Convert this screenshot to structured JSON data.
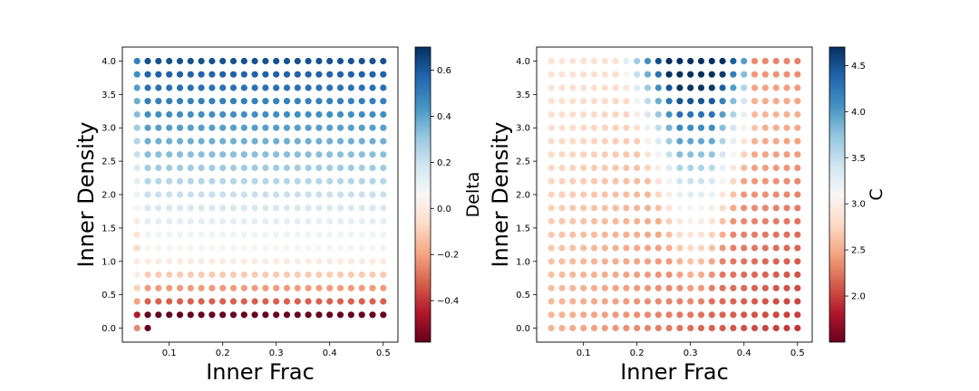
{
  "chart_data": [
    {
      "type": "scatter",
      "name": "delta",
      "xlabel": "Inner Frac",
      "ylabel": "Inner Density",
      "colorbar_label": "Delta",
      "colormap": "RdBu",
      "x": {
        "start": 0.04,
        "step": 0.02,
        "count": 24
      },
      "y": {
        "start": 0.0,
        "step": 0.2,
        "count": 21
      },
      "xlim": [
        0.0125,
        0.5275
      ],
      "ylim": [
        -0.21,
        4.21
      ],
      "xticks": [
        0.1,
        0.2,
        0.3,
        0.4,
        0.5
      ],
      "xtick_labels": [
        "0.1",
        "0.2",
        "0.3",
        "0.4",
        "0.5"
      ],
      "yticks": [
        0.0,
        0.5,
        1.0,
        1.5,
        2.0,
        2.5,
        3.0,
        3.5,
        4.0
      ],
      "ytick_labels": [
        "0.0",
        "0.5",
        "1.0",
        "1.5",
        "2.0",
        "2.5",
        "3.0",
        "3.5",
        "4.0"
      ],
      "clim": [
        -0.58,
        0.7
      ],
      "cticks": [
        -0.4,
        -0.2,
        0.0,
        0.2,
        0.4,
        0.6
      ],
      "ctick_labels": [
        "−0.4",
        "−0.2",
        "0.0",
        "0.2",
        "0.4",
        "0.6"
      ],
      "color_model": "Delta rises with Inner Density: about −0.58 at 0.2, near 0 at 1.0, about 0.62 at 4.0; the first column (0.04) is lighter; the point at (0.04, 0.0) is −0.25 and (0.06, 0.0) is −0.58"
    },
    {
      "type": "scatter",
      "name": "c",
      "xlabel": "Inner Frac",
      "ylabel": "Inner Density",
      "colorbar_label": "C",
      "colormap": "RdBu",
      "x": {
        "start": 0.04,
        "step": 0.02,
        "count": 24
      },
      "y": {
        "start": 0.0,
        "step": 0.2,
        "count": 21
      },
      "xlim": [
        0.0125,
        0.5275
      ],
      "ylim": [
        -0.21,
        4.21
      ],
      "xticks": [
        0.1,
        0.2,
        0.3,
        0.4,
        0.5
      ],
      "xtick_labels": [
        "0.1",
        "0.2",
        "0.3",
        "0.4",
        "0.5"
      ],
      "yticks": [
        0.0,
        0.5,
        1.0,
        1.5,
        2.0,
        2.5,
        3.0,
        3.5,
        4.0
      ],
      "ytick_labels": [
        "0.0",
        "0.5",
        "1.0",
        "1.5",
        "2.0",
        "2.5",
        "3.0",
        "3.5",
        "4.0"
      ],
      "clim": [
        1.5,
        4.7
      ],
      "cticks": [
        2.0,
        2.5,
        3.0,
        3.5,
        4.0,
        4.5
      ],
      "ctick_labels": [
        "2.0",
        "2.5",
        "3.0",
        "3.5",
        "4.0",
        "4.5"
      ],
      "color_model": "C is about 2.0–2.5 at low Inner Frac and low density (darkest near Inner Frac 0.5, density 0–0.4), rises to about 4.7 for Inner Frac 0.2–0.4 at density 3.8–4.0 in a band that widens with density, and falls to about 2.3 at Inner Frac 0.42–0.5 near the top"
    }
  ]
}
